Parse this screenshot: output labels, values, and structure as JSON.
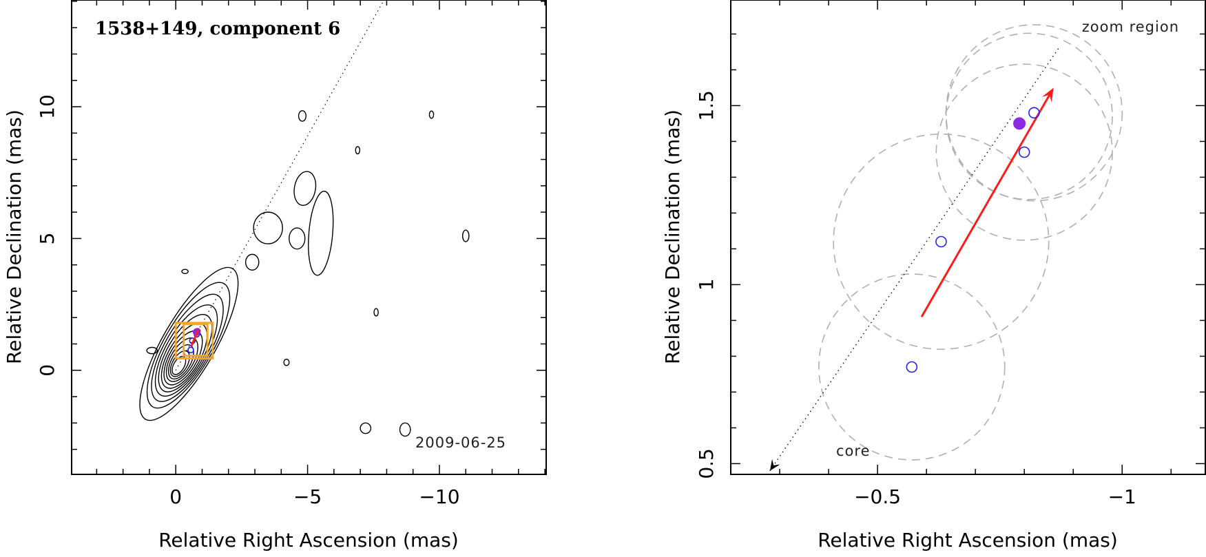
{
  "chart_data": [
    {
      "type": "contour",
      "title": "1538+149, component 6",
      "date": "2009-06-25",
      "xlabel": "Relative Right Ascension (mas)",
      "ylabel": "Relative Declination (mas)",
      "xlim": [
        3.95,
        -14.05
      ],
      "ylim": [
        -3.95,
        14.05
      ],
      "x_reversed": true,
      "xticks": [
        0,
        -5,
        -10
      ],
      "xtick_labels": [
        "0",
        "−5",
        "−10"
      ],
      "yticks": [
        0,
        5,
        10
      ],
      "yticks_labels": [
        "0",
        "5",
        "10"
      ],
      "core": {
        "x": 0,
        "y": 0
      },
      "contours": [
        {
          "x": -0.5,
          "y": 1.0,
          "rx": 1.0,
          "ry": 3.3,
          "angle_deg": 30
        },
        {
          "x": -0.48,
          "y": 0.95,
          "rx": 0.92,
          "ry": 2.7,
          "angle_deg": 30
        },
        {
          "x": -0.44,
          "y": 0.85,
          "rx": 0.84,
          "ry": 2.3,
          "angle_deg": 30
        },
        {
          "x": -0.4,
          "y": 0.75,
          "rx": 0.76,
          "ry": 1.95,
          "angle_deg": 30
        },
        {
          "x": -0.36,
          "y": 0.65,
          "rx": 0.68,
          "ry": 1.65,
          "angle_deg": 30
        },
        {
          "x": -0.32,
          "y": 0.55,
          "rx": 0.6,
          "ry": 1.38,
          "angle_deg": 30
        },
        {
          "x": -0.28,
          "y": 0.47,
          "rx": 0.52,
          "ry": 1.14,
          "angle_deg": 30
        },
        {
          "x": -0.24,
          "y": 0.4,
          "rx": 0.44,
          "ry": 0.92,
          "angle_deg": 30
        },
        {
          "x": -0.2,
          "y": 0.32,
          "rx": 0.36,
          "ry": 0.72,
          "angle_deg": 30
        },
        {
          "x": -0.16,
          "y": 0.25,
          "rx": 0.28,
          "ry": 0.54,
          "angle_deg": 30
        },
        {
          "x": -0.12,
          "y": 0.18,
          "rx": 0.2,
          "ry": 0.38,
          "angle_deg": 30
        },
        {
          "x": -4.9,
          "y": 6.9,
          "rx": 0.4,
          "ry": 0.65,
          "angle_deg": 10
        },
        {
          "x": -5.5,
          "y": 5.2,
          "rx": 0.45,
          "ry": 1.6,
          "angle_deg": 5
        },
        {
          "x": -4.6,
          "y": 5.0,
          "rx": 0.3,
          "ry": 0.4,
          "angle_deg": 0
        },
        {
          "x": -3.5,
          "y": 5.4,
          "rx": 0.55,
          "ry": 0.6,
          "angle_deg": 0
        },
        {
          "x": -2.9,
          "y": 4.1,
          "rx": 0.25,
          "ry": 0.3,
          "angle_deg": 0
        },
        {
          "x": -4.8,
          "y": 9.65,
          "rx": 0.14,
          "ry": 0.2,
          "angle_deg": 0
        },
        {
          "x": -6.9,
          "y": 8.35,
          "rx": 0.08,
          "ry": 0.14,
          "angle_deg": 0
        },
        {
          "x": -9.7,
          "y": 9.7,
          "rx": 0.08,
          "ry": 0.14,
          "angle_deg": 0
        },
        {
          "x": -11.0,
          "y": 5.1,
          "rx": 0.12,
          "ry": 0.22,
          "angle_deg": 0
        },
        {
          "x": -7.2,
          "y": -2.2,
          "rx": 0.2,
          "ry": 0.2,
          "angle_deg": 0
        },
        {
          "x": -8.7,
          "y": -2.25,
          "rx": 0.2,
          "ry": 0.25,
          "angle_deg": 0
        },
        {
          "x": -4.2,
          "y": 0.3,
          "rx": 0.1,
          "ry": 0.12,
          "angle_deg": 0
        },
        {
          "x": 0.9,
          "y": 0.75,
          "rx": 0.2,
          "ry": 0.12,
          "angle_deg": 0
        },
        {
          "x": -0.35,
          "y": 3.75,
          "rx": 0.12,
          "ry": 0.08,
          "angle_deg": 0
        },
        {
          "x": -7.6,
          "y": 2.2,
          "rx": 0.08,
          "ry": 0.14,
          "angle_deg": 0
        }
      ],
      "markers": {
        "epochs": [
          {
            "x": -0.57,
            "y": 0.77
          },
          {
            "x": -0.63,
            "y": 1.12
          },
          {
            "x": -0.8,
            "y": 1.37
          },
          {
            "x": -0.82,
            "y": 1.48
          }
        ],
        "current": {
          "x": -0.79,
          "y": 1.45
        }
      },
      "zoom_boxes": [
        {
          "x0": 0.0,
          "x1": -1.4,
          "y0": 0.45,
          "y1": 1.8
        },
        {
          "x0": -0.3,
          "y0": 0.55,
          "x1": -1.2,
          "y1": 1.75
        }
      ],
      "jet_direction": {
        "from": {
          "x": 0,
          "y": 0
        },
        "to": {
          "x": -7.9,
          "y": 14.05
        }
      },
      "velocity_arrow": {
        "from": {
          "x": -0.59,
          "y": 0.91
        },
        "to": {
          "x": -0.86,
          "y": 1.55
        }
      }
    },
    {
      "type": "scatter",
      "xlabel": "Relative Right Ascension (mas)",
      "ylabel": "Relative Declination (mas)",
      "xlim": [
        -0.2,
        -1.17
      ],
      "ylim": [
        0.47,
        1.795
      ],
      "x_reversed": true,
      "xticks": [
        -0.5,
        -1
      ],
      "xtick_labels": [
        "−0.5",
        "−1"
      ],
      "yticks": [
        0.5,
        1,
        1.5
      ],
      "ytick_labels": [
        "0.5",
        "1",
        "1.5"
      ],
      "annotations": {
        "zoom_region": "zoom region",
        "core": "core"
      },
      "epochs": [
        {
          "x": -0.57,
          "y": 0.77,
          "err_radius": 0.19
        },
        {
          "x": -0.63,
          "y": 1.12,
          "err_radius": 0.22
        },
        {
          "x": -0.8,
          "y": 1.37,
          "err_radius": 0.18
        },
        {
          "x": -0.82,
          "y": 1.48,
          "err_radius": 0.18
        },
        {
          "x": -0.81,
          "y": 1.47,
          "err_radius": 0.17
        }
      ],
      "current_epoch": {
        "x": -0.79,
        "y": 1.45
      },
      "jet_direction": {
        "from": {
          "x": -0.28,
          "y": 0.48
        },
        "to": {
          "x": -0.87,
          "y": 1.66
        }
      },
      "core_arrow_tip": {
        "x": -0.28,
        "y": 0.48
      },
      "velocity_arrow": {
        "from": {
          "x": -0.59,
          "y": 0.91
        },
        "to": {
          "x": -0.86,
          "y": 1.55
        }
      },
      "colors": {
        "epoch": "#1f1fff",
        "current": "#8a2be2",
        "arrow": "#ff1a1a",
        "circle": "#b0b0b0"
      }
    }
  ]
}
